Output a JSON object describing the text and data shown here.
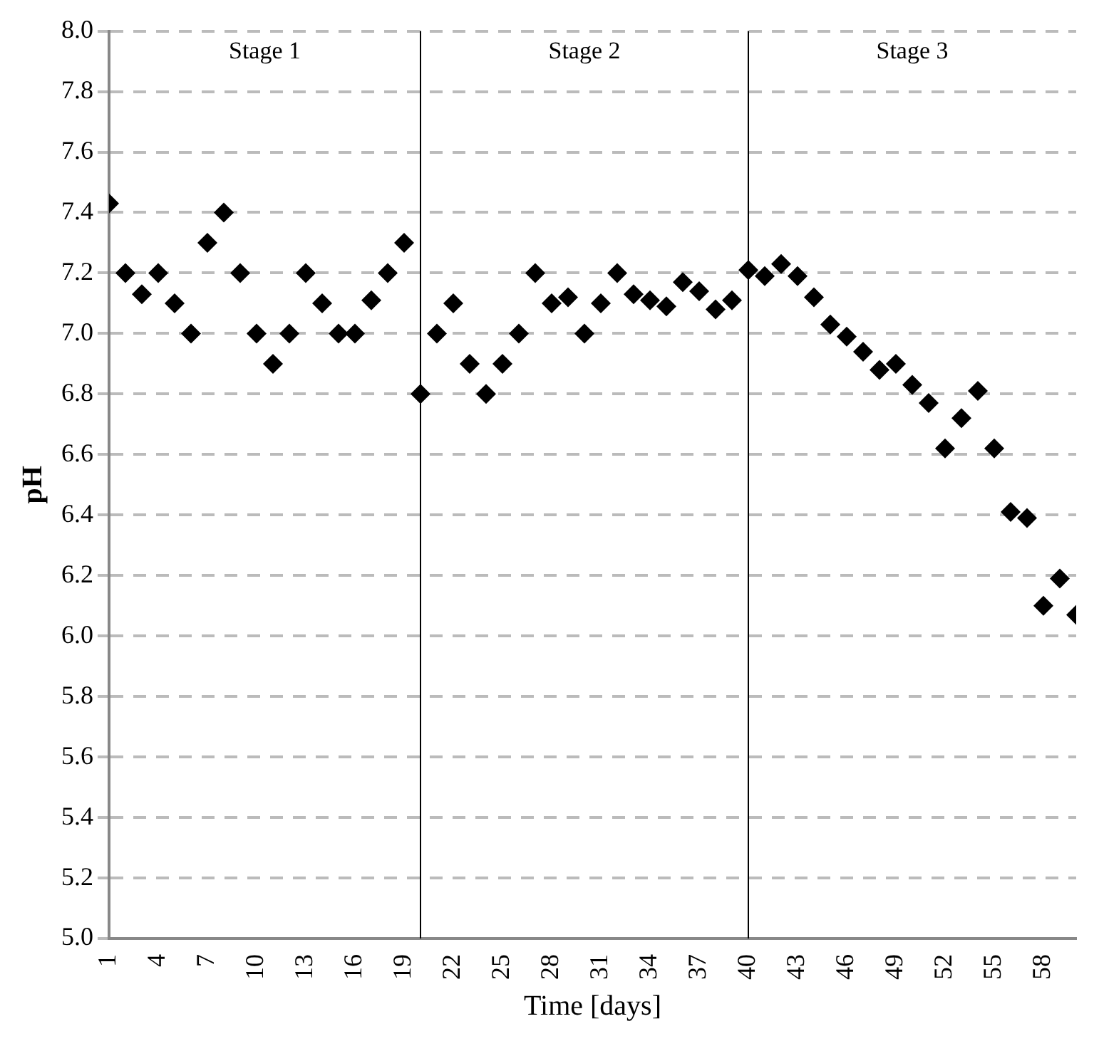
{
  "chart_data": {
    "type": "scatter",
    "xlabel": "Time [days]",
    "ylabel": "pH",
    "x": [
      1,
      2,
      3,
      4,
      5,
      6,
      7,
      8,
      9,
      10,
      11,
      12,
      13,
      14,
      15,
      16,
      17,
      18,
      19,
      20,
      21,
      22,
      23,
      24,
      25,
      26,
      27,
      28,
      29,
      30,
      31,
      32,
      33,
      34,
      35,
      36,
      37,
      38,
      39,
      40,
      41,
      42,
      43,
      44,
      45,
      46,
      47,
      48,
      49,
      50,
      51,
      52,
      53,
      54,
      55,
      56,
      57,
      58,
      59,
      60
    ],
    "series": [
      {
        "color": "#000000",
        "values": [
          7.43,
          7.2,
          7.13,
          7.2,
          7.1,
          7.0,
          7.3,
          7.4,
          7.2,
          7.0,
          6.9,
          7.0,
          7.2,
          7.1,
          7.0,
          7.0,
          7.11,
          7.2,
          7.3,
          6.8,
          7.0,
          7.1,
          6.9,
          6.8,
          6.9,
          7.0,
          7.2,
          7.1,
          7.12,
          7.0,
          7.1,
          7.2,
          7.13,
          7.11,
          7.09,
          7.17,
          7.14,
          7.08,
          7.11,
          7.21,
          7.19,
          7.23,
          7.19,
          7.12,
          7.03,
          6.99,
          6.94,
          6.88,
          6.9,
          6.83,
          6.77,
          6.62,
          6.72,
          6.81,
          6.62,
          6.41,
          6.39,
          6.1,
          6.19,
          6.07
        ]
      }
    ],
    "xlim": [
      1,
      60
    ],
    "xticks": [
      1,
      4,
      7,
      10,
      13,
      16,
      19,
      22,
      25,
      28,
      31,
      34,
      37,
      40,
      43,
      46,
      49,
      52,
      55,
      58
    ],
    "ylim": [
      5.0,
      8.0
    ],
    "yticks": [
      {
        "value": 5.0,
        "label": "5.0"
      },
      {
        "value": 5.2,
        "label": "5.2"
      },
      {
        "value": 5.4,
        "label": "5.4"
      },
      {
        "value": 5.6,
        "label": "5.6"
      },
      {
        "value": 5.8,
        "label": "5.8"
      },
      {
        "value": 6.0,
        "label": "6.0"
      },
      {
        "value": 6.2,
        "label": "6.2"
      },
      {
        "value": 6.4,
        "label": "6.4"
      },
      {
        "value": 6.6,
        "label": "6.6"
      },
      {
        "value": 6.8,
        "label": "6.8"
      },
      {
        "value": 7.0,
        "label": "7.0"
      },
      {
        "value": 7.2,
        "label": "7.2"
      },
      {
        "value": 7.4,
        "label": "7.4"
      },
      {
        "value": 7.6,
        "label": "7.6"
      },
      {
        "value": 7.8,
        "label": "7.8"
      },
      {
        "value": 8.0,
        "label": "8.0"
      }
    ],
    "ref_lines": [
      {
        "axis": "x",
        "value": 20,
        "color": "#000000"
      },
      {
        "axis": "x",
        "value": 40,
        "color": "#000000"
      }
    ],
    "annotations": [
      "Stage 1",
      "Stage 2",
      "Stage 3"
    ],
    "grid": "y",
    "legend": false,
    "marker": "diamond"
  }
}
